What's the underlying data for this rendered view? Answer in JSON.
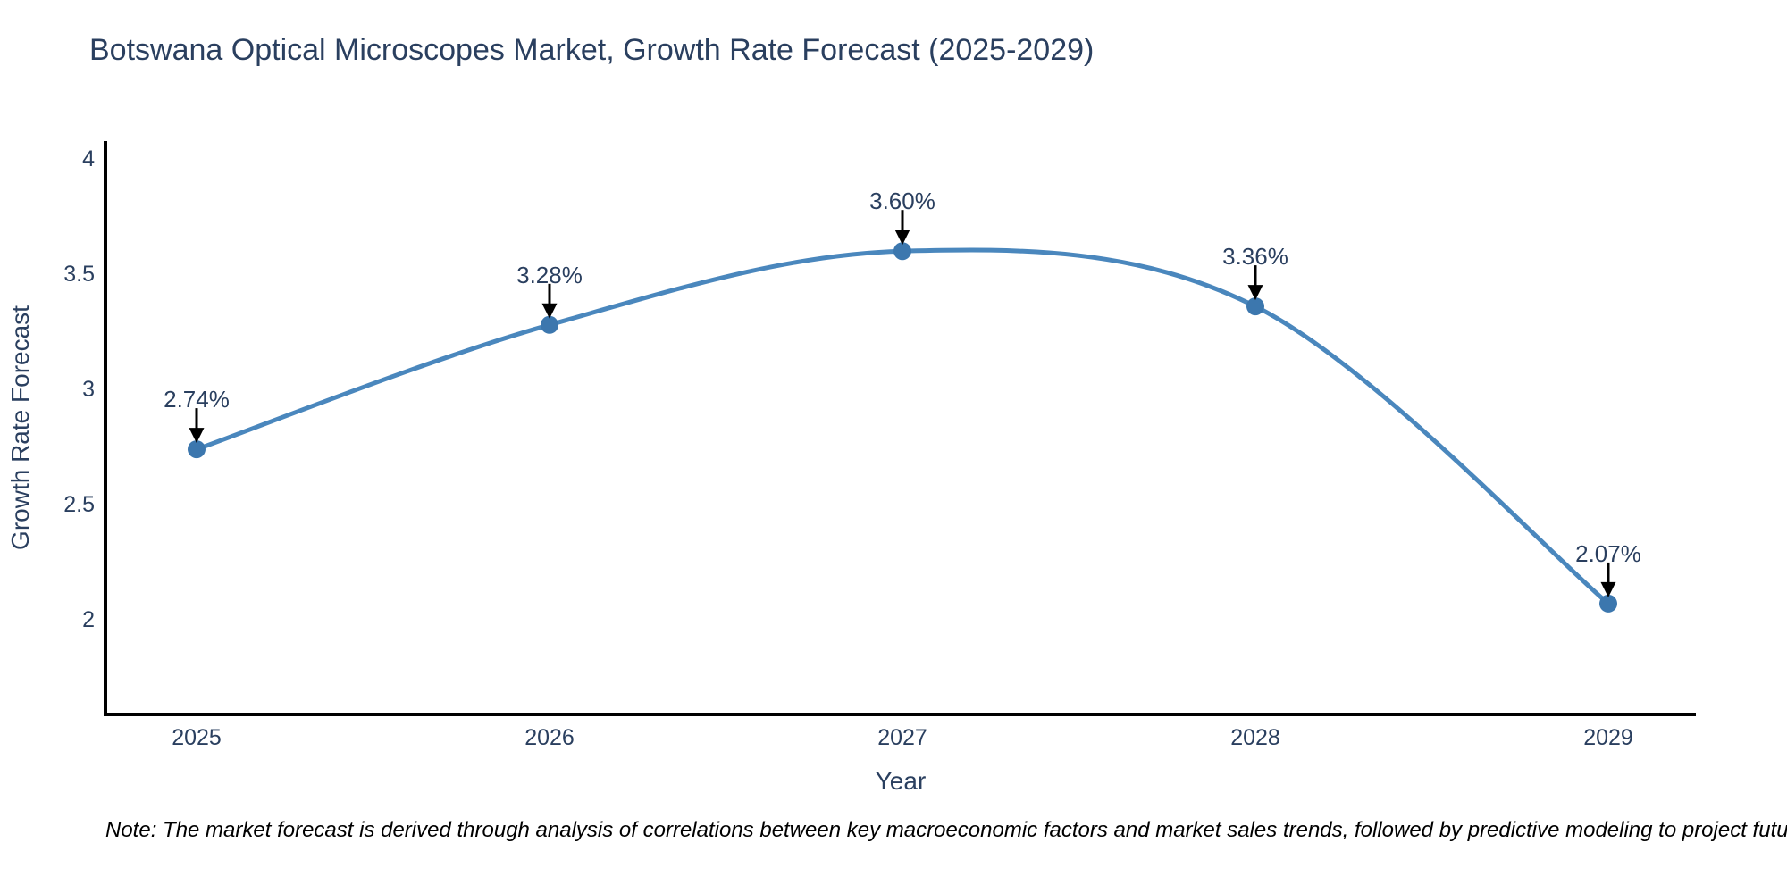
{
  "chart_data": {
    "type": "line",
    "title": "Botswana Optical Microscopes Market, Growth Rate Forecast (2025-2029)",
    "xlabel": "Year",
    "ylabel": "Growth Rate Forecast",
    "x": [
      2025,
      2026,
      2027,
      2028,
      2029
    ],
    "categories": [
      "2025",
      "2026",
      "2027",
      "2028",
      "2029"
    ],
    "series": [
      {
        "name": "Growth Rate Forecast",
        "values": [
          2.74,
          3.28,
          3.6,
          3.36,
          2.07
        ],
        "point_labels": [
          "2.74%",
          "3.28%",
          "3.60%",
          "3.36%",
          "2.07%"
        ]
      }
    ],
    "ytick_values": [
      2,
      2.5,
      3,
      3.5,
      4
    ],
    "ytick_labels": [
      "2",
      "2.5",
      "3",
      "3.5",
      "4"
    ],
    "ylim": [
      1.59,
      4.07
    ],
    "xlim": [
      2024.74,
      2029.25
    ],
    "grid": false,
    "legend_position": "none",
    "line_shape": "spline",
    "marker": "circle",
    "annotation_style": "label-above-with-down-arrow",
    "note": "Note: The market forecast is derived through analysis of correlations between key macroeconomic factors and market sales trends, followed by predictive modeling to project future sales",
    "colors": {
      "line": "#4a87bd",
      "marker": "#3c77ae",
      "text": "#2a3f5f",
      "axis": "#000000",
      "arrow": "#000000",
      "note_text": "#000000",
      "background": "#ffffff"
    }
  }
}
